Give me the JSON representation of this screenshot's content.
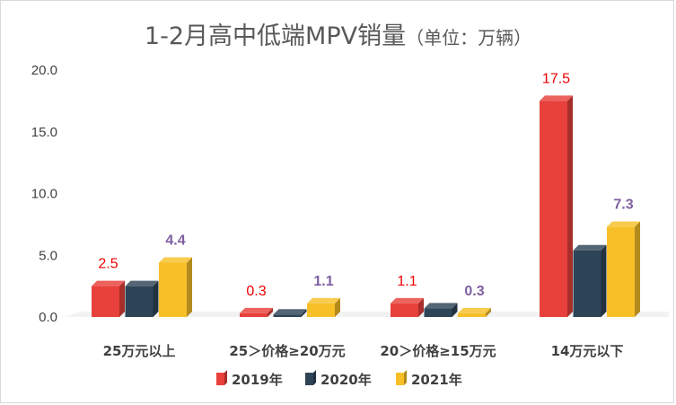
{
  "title": "1-2月高中低端MPV销量",
  "title_unit": "（单位：万辆）",
  "chart_data": {
    "type": "bar",
    "title": "1-2月高中低端MPV销量（单位：万辆）",
    "categories": [
      "25万元以上",
      "25＞价格≥20万元",
      "20＞价格≥15万元",
      "14万元以下"
    ],
    "series": [
      {
        "name": "2019年",
        "values": [
          2.5,
          0.3,
          1.1,
          17.5
        ],
        "color": "#e8403a",
        "label_color": "#ee0000"
      },
      {
        "name": "2020年",
        "values": [
          2.5,
          0.2,
          0.7,
          5.4
        ],
        "color": "#2e4457",
        "label_color": null
      },
      {
        "name": "2021年",
        "values": [
          4.4,
          1.1,
          0.3,
          7.3
        ],
        "color": "#f7c028",
        "label_color": "#7f5fa0"
      }
    ],
    "data_labels": {
      "2019年": [
        "2.5",
        "0.3",
        "1.1",
        "17.5"
      ],
      "2021年": [
        "4.4",
        "1.1",
        "0.3",
        "7.3"
      ]
    },
    "yticks": [
      "0.0",
      "5.0",
      "10.0",
      "15.0",
      "20.0"
    ],
    "ylim": [
      0,
      20
    ],
    "grid": false,
    "legend_position": "bottom"
  }
}
